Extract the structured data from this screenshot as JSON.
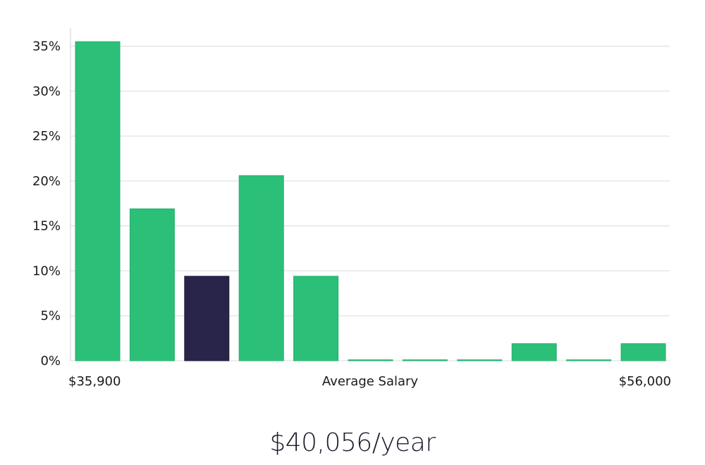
{
  "chart_data": {
    "type": "bar",
    "title": "",
    "xlabel": "Average Salary",
    "ylabel": "",
    "x_min_label": "$35,900",
    "x_max_label": "$56,000",
    "values": [
      35.5,
      16.9,
      9.4,
      20.6,
      9.4,
      0.1,
      0.1,
      0.1,
      1.9,
      0.1,
      1.9
    ],
    "highlight_index": 2,
    "ylim": [
      0,
      37
    ],
    "yticks": [
      0,
      5,
      10,
      15,
      20,
      25,
      30,
      35
    ],
    "ytick_labels": [
      "0%",
      "5%",
      "10%",
      "15%",
      "20%",
      "25%",
      "30%",
      "35%"
    ],
    "grid": true,
    "colors": {
      "bar": "#2bbf78",
      "highlight": "#29254a",
      "axis": "#cfcfcf",
      "grid": "#dcdcdc"
    }
  },
  "summary": {
    "average_salary": "$40,056/year"
  }
}
